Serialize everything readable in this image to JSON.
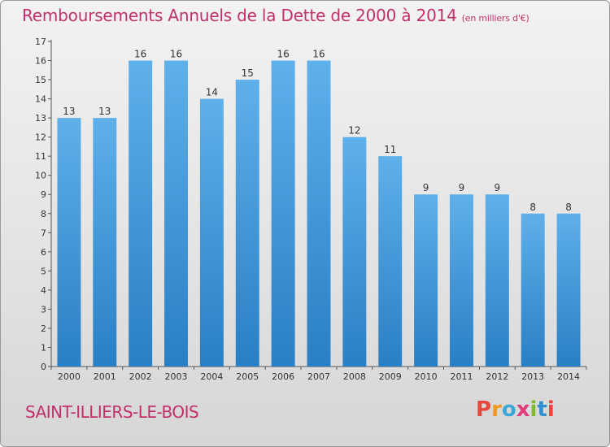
{
  "header": {
    "title": "Remboursements Annuels de la Dette de 2000 à 2014",
    "subtitle": "(en milliers d'€)"
  },
  "footer": {
    "commune": "SAINT-ILLIERS-LE-BOIS",
    "logo_letters": [
      "P",
      "r",
      "o",
      "x",
      "i",
      "t",
      "i"
    ]
  },
  "colors": {
    "title": "#c0306a",
    "bar_top": "#5fb0ea",
    "bar_bottom": "#2a7fc4",
    "logo": [
      "#e8453c",
      "#f39a1d",
      "#3aa6d8",
      "#e23b7a",
      "#7dbb2e",
      "#2f8fd0",
      "#e8453c"
    ]
  },
  "chart_data": {
    "type": "bar",
    "title": "Remboursements Annuels de la Dette de 2000 à 2014",
    "categories": [
      "2000",
      "2001",
      "2002",
      "2003",
      "2004",
      "2005",
      "2006",
      "2007",
      "2008",
      "2009",
      "2010",
      "2011",
      "2012",
      "2013",
      "2014"
    ],
    "values": [
      13,
      13,
      16,
      16,
      14,
      15,
      16,
      16,
      12,
      11,
      9,
      9,
      9,
      8,
      8
    ],
    "ylim": [
      0,
      17
    ],
    "yticks": [
      0,
      1,
      2,
      3,
      4,
      5,
      6,
      7,
      8,
      9,
      10,
      11,
      12,
      13,
      14,
      15,
      16,
      17
    ],
    "data_labels": true,
    "grid": false
  }
}
